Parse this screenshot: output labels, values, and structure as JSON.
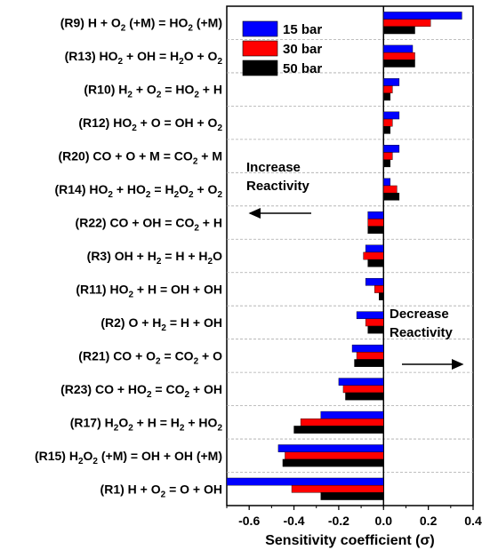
{
  "chart_data": {
    "type": "bar",
    "orientation": "horizontal",
    "xlabel": "Sensitivity coefficient (σ)",
    "ylabel": "",
    "xlim": [
      -0.7,
      0.4
    ],
    "x_ticks": [
      "-0.6",
      "-0.4",
      "-0.2",
      "0.0",
      "0.2",
      "0.4"
    ],
    "categories": [
      "(R9) H + O2 (+M) = HO2 (+M)",
      "(R13) HO2 + OH = H2O + O2",
      "(R10) H2 + O2 = HO2 + H",
      "(R12) HO2 + O = OH + O2",
      "(R20) CO + O + M = CO2 + M",
      "(R14) HO2 + HO2 = H2O2 + O2",
      "(R22) CO + OH = CO2 + H",
      "(R3) OH + H2 = H + H2O",
      "(R11) HO2 + H = OH + OH",
      "(R2) O + H2 = H + OH",
      "(R21) CO + O2 = CO2 + O",
      "(R23) CO + HO2 = CO2 + OH",
      "(R17) H2O2 + H = H2 + HO2",
      "(R15) H2O2 (+M) = OH + OH (+M)",
      "(R1) H + O2 = O + OH"
    ],
    "series": [
      {
        "name": "15 bar",
        "color": "#0000ff",
        "values": [
          0.35,
          0.13,
          0.07,
          0.07,
          0.07,
          0.03,
          -0.07,
          -0.08,
          -0.08,
          -0.12,
          -0.14,
          -0.2,
          -0.28,
          -0.47,
          -0.7
        ]
      },
      {
        "name": "30 bar",
        "color": "#ff0000",
        "values": [
          0.21,
          0.14,
          0.04,
          0.04,
          0.04,
          0.06,
          -0.07,
          -0.09,
          -0.04,
          -0.08,
          -0.12,
          -0.18,
          -0.37,
          -0.44,
          -0.41
        ]
      },
      {
        "name": "50 bar",
        "color": "#000000",
        "values": [
          0.14,
          0.14,
          0.03,
          0.03,
          0.03,
          0.07,
          -0.07,
          -0.07,
          -0.02,
          -0.07,
          -0.13,
          -0.17,
          -0.4,
          -0.45,
          -0.28
        ]
      }
    ],
    "annotations": {
      "increase": "Increase Reactivity",
      "decrease": "Decrease Reactivity"
    },
    "grid": "horizontal dashed separators",
    "legend_position": "top-right"
  }
}
